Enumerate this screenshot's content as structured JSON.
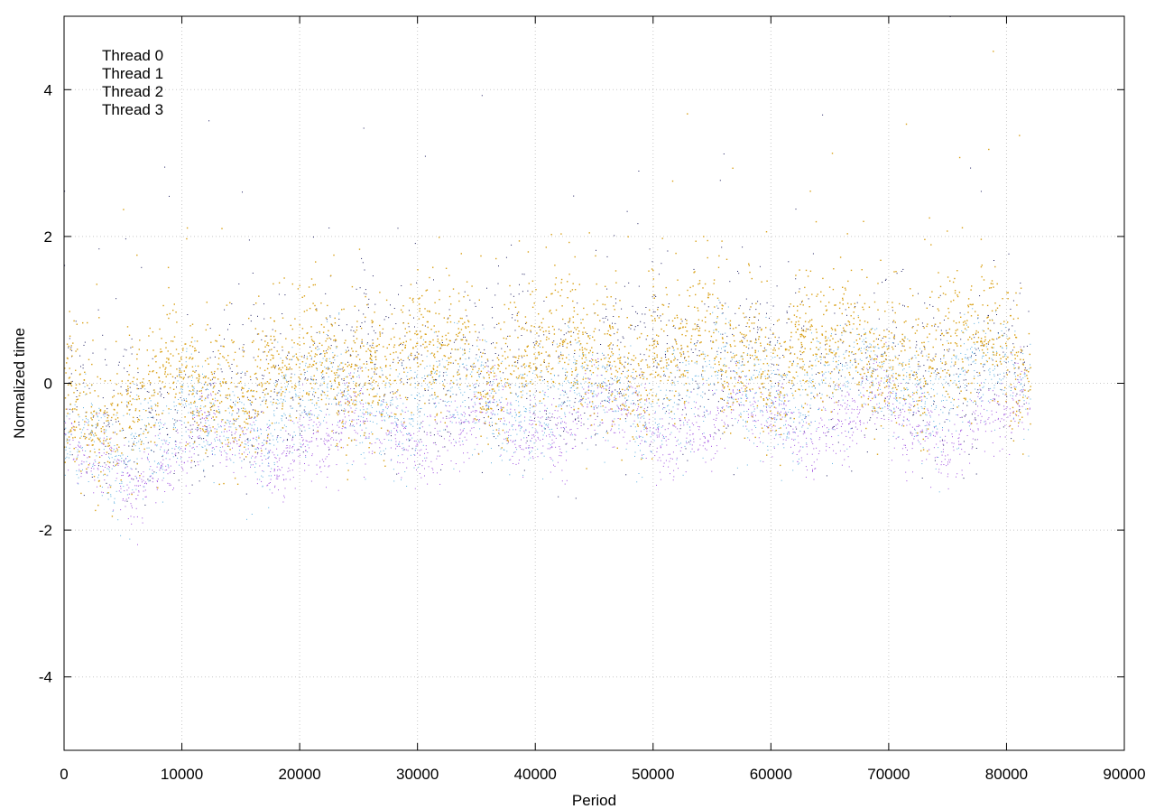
{
  "chart_data": {
    "type": "scatter",
    "title": "",
    "xlabel": "Period",
    "ylabel": "Normalized time",
    "xlim": [
      0,
      90000
    ],
    "ylim": [
      -5,
      5
    ],
    "xticks": [
      0,
      10000,
      20000,
      30000,
      40000,
      50000,
      60000,
      70000,
      80000,
      90000
    ],
    "yticks": [
      -4,
      -2,
      0,
      2,
      4
    ],
    "xtick_labels": [
      "0",
      "10000",
      "20000",
      "30000",
      "40000",
      "50000",
      "60000",
      "70000",
      "80000",
      "90000"
    ],
    "ytick_labels": [
      "-4",
      "-2",
      "0",
      "2",
      "4"
    ],
    "grid": true,
    "legend_position": "top-left",
    "x_end": 82000,
    "series": [
      {
        "name": "Thread 0",
        "color": "#1a1a5e",
        "x": [
          0,
          2000,
          5000,
          10000,
          15000,
          20000,
          25000,
          30000,
          35000,
          40000,
          45000,
          50000,
          55000,
          60000,
          65000,
          70000,
          75000,
          80000,
          82000
        ],
        "y": [
          -0.2,
          -0.3,
          -0.4,
          -0.3,
          -0.2,
          0.1,
          0.2,
          0.3,
          0.2,
          0.3,
          0.2,
          0.3,
          0.4,
          0.3,
          0.3,
          0.4,
          0.3,
          0.3,
          0.2
        ]
      },
      {
        "name": "Thread 1",
        "color": "#a050e0",
        "x": [
          0,
          2000,
          5000,
          10000,
          15000,
          20000,
          23000,
          25000,
          30000,
          32500,
          35000,
          40000,
          43000,
          45000,
          50000,
          55000,
          60000,
          65000,
          70000,
          75000,
          80000,
          82000
        ],
        "y": [
          -1.1,
          -1.15,
          -1.15,
          -0.95,
          -0.85,
          -0.75,
          -0.95,
          -0.65,
          -0.55,
          -0.85,
          -0.55,
          -0.45,
          -0.55,
          -0.5,
          -0.55,
          -0.55,
          -0.5,
          -0.5,
          -0.45,
          -0.6,
          -0.55,
          -0.45
        ]
      },
      {
        "name": "Thread 2",
        "color": "#5aaee0",
        "x": [
          0,
          2000,
          5000,
          10000,
          15000,
          20000,
          25000,
          30000,
          35000,
          40000,
          45000,
          50000,
          55000,
          60000,
          65000,
          70000,
          75000,
          80000,
          82000
        ],
        "y": [
          -0.8,
          -0.85,
          -0.8,
          -0.65,
          -0.5,
          -0.35,
          -0.25,
          -0.2,
          -0.25,
          -0.15,
          -0.25,
          -0.15,
          -0.05,
          -0.1,
          -0.05,
          0.0,
          -0.05,
          0.05,
          0.0
        ]
      },
      {
        "name": "Thread 3",
        "color": "#d9a015",
        "x": [
          0,
          2000,
          5000,
          10000,
          15000,
          20000,
          25000,
          30000,
          35000,
          40000,
          45000,
          50000,
          55000,
          60000,
          65000,
          70000,
          75000,
          80000,
          82000
        ],
        "y": [
          -0.3,
          -0.3,
          -0.35,
          -0.05,
          0.05,
          0.15,
          0.3,
          0.4,
          0.3,
          0.5,
          0.3,
          0.4,
          0.5,
          0.4,
          0.4,
          0.5,
          0.4,
          0.5,
          0.4
        ]
      }
    ]
  }
}
